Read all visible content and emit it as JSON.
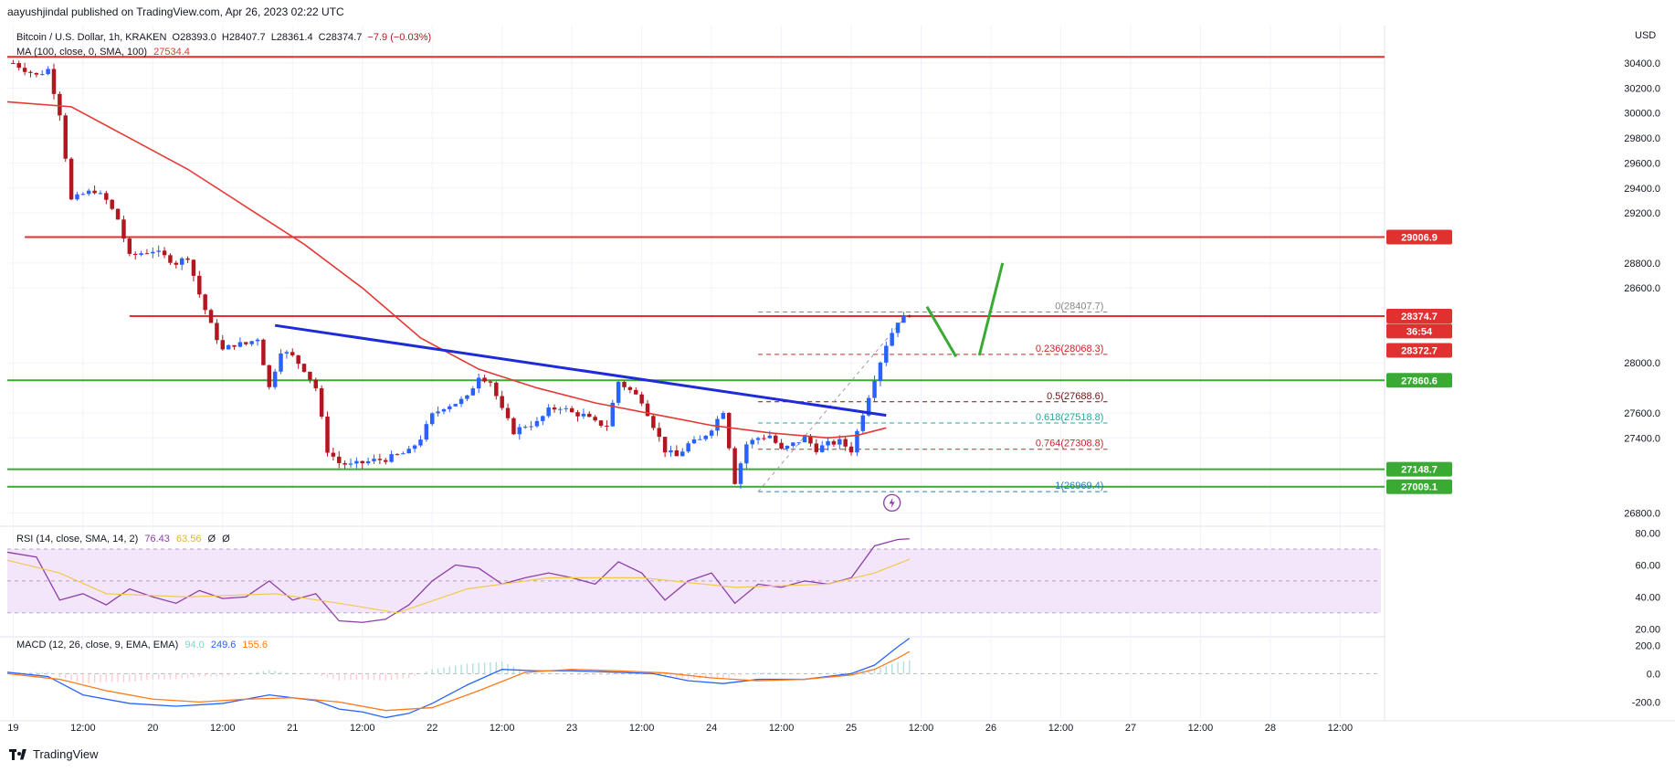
{
  "header": {
    "publisher": "aayushjindal published on TradingView.com, Apr 26, 2023 02:22 UTC"
  },
  "symbol": {
    "name": "Bitcoin / U.S. Dollar, 1h, KRAKEN",
    "open": "O28393.0",
    "high": "H28407.7",
    "low": "L28361.4",
    "close": "C28374.7",
    "change": "−7.9 (−0.03%)",
    "ma_label": "MA (100, close, 0, SMA, 100)",
    "ma_value": "27534.4"
  },
  "currency": "USD",
  "rsi_legend": {
    "label": "RSI (14, close, SMA, 14, 2)",
    "v1": "76.43",
    "v2": "63.56",
    "v3": "Ø",
    "v4": "Ø"
  },
  "macd_legend": {
    "label": "MACD (12, 26, close, 9, EMA, EMA)",
    "v1": "94.0",
    "v2": "249.6",
    "v3": "155.6"
  },
  "brand": "TradingView",
  "colors": {
    "up": "#2962ff",
    "down": "#b2161e",
    "ma": "#e53935",
    "res": "#e03030",
    "sup": "#3aaa35",
    "trend": "#1e2bd6",
    "rsi": "#8e3fa8",
    "macd": "#2962ff",
    "signal": "#ff7a1a"
  },
  "chart_data": [
    {
      "type": "candlestick",
      "title": "Bitcoin / U.S. Dollar, 1h, KRAKEN",
      "x_ticks": [
        "19",
        "12:00",
        "20",
        "12:00",
        "21",
        "12:00",
        "22",
        "12:00",
        "23",
        "12:00",
        "24",
        "12:00",
        "25",
        "12:00",
        "26",
        "12:00",
        "27",
        "12:00",
        "28",
        "12:00"
      ],
      "x_tick_hours": [
        0,
        12,
        24,
        36,
        48,
        60,
        72,
        84,
        96,
        108,
        120,
        132,
        144,
        156,
        168,
        180,
        192,
        204,
        216,
        228
      ],
      "y_ticks": [
        "30400.0",
        "30200.0",
        "30000.0",
        "29800.0",
        "29600.0",
        "29400.0",
        "29200.0",
        "28800.0",
        "28600.0",
        "28000.0",
        "27600.0",
        "27400.0",
        "26800.0"
      ],
      "y_tick_values": [
        30400,
        30200,
        30000,
        29800,
        29600,
        29400,
        29200,
        28800,
        28600,
        28000,
        27600,
        27400,
        26800
      ],
      "ylim": [
        26700,
        30700
      ],
      "xlim_hours": [
        -1,
        235
      ],
      "anchors_close": [
        [
          0,
          30400
        ],
        [
          2,
          30350
        ],
        [
          4,
          30300
        ],
        [
          6,
          30350
        ],
        [
          8,
          30000
        ],
        [
          10,
          29300
        ],
        [
          12,
          29350
        ],
        [
          14,
          29380
        ],
        [
          16,
          29300
        ],
        [
          18,
          29150
        ],
        [
          20,
          28850
        ],
        [
          22,
          28880
        ],
        [
          24,
          28900
        ],
        [
          26,
          28850
        ],
        [
          28,
          28800
        ],
        [
          30,
          28850
        ],
        [
          32,
          28550
        ],
        [
          34,
          28300
        ],
        [
          36,
          28100
        ],
        [
          38,
          28150
        ],
        [
          40,
          28150
        ],
        [
          42,
          28200
        ],
        [
          44,
          27800
        ],
        [
          46,
          28100
        ],
        [
          48,
          28050
        ],
        [
          50,
          27950
        ],
        [
          52,
          27800
        ],
        [
          54,
          27300
        ],
        [
          56,
          27200
        ],
        [
          58,
          27180
        ],
        [
          60,
          27200
        ],
        [
          62,
          27220
        ],
        [
          64,
          27230
        ],
        [
          66,
          27260
        ],
        [
          68,
          27290
        ],
        [
          70,
          27400
        ],
        [
          72,
          27580
        ],
        [
          74,
          27650
        ],
        [
          76,
          27680
        ],
        [
          78,
          27720
        ],
        [
          80,
          27900
        ],
        [
          82,
          27850
        ],
        [
          84,
          27620
        ],
        [
          86,
          27450
        ],
        [
          88,
          27500
        ],
        [
          90,
          27520
        ],
        [
          92,
          27620
        ],
        [
          94,
          27650
        ],
        [
          96,
          27600
        ],
        [
          98,
          27580
        ],
        [
          100,
          27520
        ],
        [
          102,
          27500
        ],
        [
          104,
          27850
        ],
        [
          106,
          27780
        ],
        [
          108,
          27700
        ],
        [
          110,
          27500
        ],
        [
          112,
          27300
        ],
        [
          114,
          27250
        ],
        [
          116,
          27350
        ],
        [
          118,
          27380
        ],
        [
          120,
          27480
        ],
        [
          122,
          27620
        ],
        [
          124,
          27050
        ],
        [
          126,
          27350
        ],
        [
          128,
          27400
        ],
        [
          130,
          27420
        ],
        [
          132,
          27300
        ],
        [
          134,
          27350
        ],
        [
          136,
          27400
        ],
        [
          138,
          27310
        ],
        [
          140,
          27350
        ],
        [
          142,
          27370
        ],
        [
          144,
          27300
        ],
        [
          146,
          27600
        ],
        [
          148,
          27880
        ],
        [
          150,
          28150
        ],
        [
          152,
          28340
        ],
        [
          154,
          28380
        ]
      ],
      "current_price": 28374.7,
      "series": [
        {
          "name": "MA (100, close, 0, SMA, 100)",
          "points": [
            [
              -1,
              30090
            ],
            [
              10,
              30050
            ],
            [
              20,
              29800
            ],
            [
              30,
              29550
            ],
            [
              40,
              29250
            ],
            [
              50,
              28950
            ],
            [
              60,
              28600
            ],
            [
              70,
              28200
            ],
            [
              80,
              27950
            ],
            [
              90,
              27800
            ],
            [
              100,
              27680
            ],
            [
              110,
              27590
            ],
            [
              120,
              27500
            ],
            [
              130,
              27440
            ],
            [
              140,
              27400
            ],
            [
              145,
              27420
            ],
            [
              150,
              27480
            ]
          ]
        }
      ],
      "horizontal_lines": [
        {
          "price": 30450,
          "from_h": -1,
          "role": "resistance"
        },
        {
          "price": 29006.9,
          "from_h": 2,
          "role": "resistance"
        },
        {
          "price": 28374.7,
          "from_h": 20,
          "role": "resistance"
        },
        {
          "price": 27860.6,
          "from_h": -1,
          "role": "support"
        },
        {
          "price": 27148.7,
          "from_h": -1,
          "role": "support"
        },
        {
          "price": 27009.1,
          "from_h": -1,
          "role": "support"
        }
      ],
      "trend_line": [
        [
          45,
          28300
        ],
        [
          150,
          27580
        ]
      ],
      "price_labels": [
        {
          "text": "29006.9",
          "price": 29006.9,
          "kind": "res"
        },
        {
          "text": "28374.7",
          "price": 28374.7,
          "kind": "res"
        },
        {
          "text": "36:54",
          "price": 28255,
          "kind": "res"
        },
        {
          "text": "28372.7",
          "price": 28100,
          "kind": "res"
        },
        {
          "text": "27860.6",
          "price": 27860.6,
          "kind": "sup"
        },
        {
          "text": "27148.7",
          "price": 27148.7,
          "kind": "sup"
        },
        {
          "text": "27009.1",
          "price": 27009.1,
          "kind": "sup"
        }
      ],
      "fibonacci": {
        "from_h": 128,
        "to_h": 188,
        "levels": [
          {
            "text": "0(28407.7)",
            "price": 28407.7,
            "color": "#888888"
          },
          {
            "text": "0.236(28068.3)",
            "price": 28068.3,
            "color": "#c62828"
          },
          {
            "text": "0.5(27688.6)",
            "price": 27688.6,
            "color": "#6d1414"
          },
          {
            "text": "0.618(27518.8)",
            "price": 27518.8,
            "color": "#26a69a"
          },
          {
            "text": "0.764(27308.8)",
            "price": 27308.8,
            "color": "#c62828"
          },
          {
            "text": "1(26969.4)",
            "price": 26969.4,
            "color": "#2a7fb0"
          }
        ]
      },
      "projection": [
        [
          157,
          28450
        ],
        [
          162,
          28050
        ],
        [
          166,
          28060
        ],
        [
          170,
          28800
        ]
      ]
    },
    {
      "type": "line",
      "title": "RSI (14, close, SMA, 14, 2)",
      "y_ticks": [
        "80.00",
        "60.00",
        "40.00",
        "20.00"
      ],
      "y_tick_values": [
        80,
        60,
        40,
        20
      ],
      "ylim": [
        15,
        82
      ],
      "bands": [
        30,
        50,
        70
      ],
      "series": [
        {
          "name": "RSI (14, close, SMA, 14, 2)",
          "points": [
            [
              -1,
              68
            ],
            [
              4,
              65
            ],
            [
              8,
              38
            ],
            [
              12,
              42
            ],
            [
              16,
              35
            ],
            [
              20,
              45
            ],
            [
              24,
              40
            ],
            [
              28,
              36
            ],
            [
              32,
              44
            ],
            [
              36,
              39
            ],
            [
              40,
              40
            ],
            [
              44,
              50
            ],
            [
              48,
              38
            ],
            [
              52,
              42
            ],
            [
              56,
              25
            ],
            [
              60,
              24
            ],
            [
              64,
              26
            ],
            [
              68,
              35
            ],
            [
              72,
              50
            ],
            [
              76,
              60
            ],
            [
              80,
              58
            ],
            [
              84,
              48
            ],
            [
              88,
              52
            ],
            [
              92,
              55
            ],
            [
              96,
              52
            ],
            [
              100,
              48
            ],
            [
              104,
              62
            ],
            [
              108,
              55
            ],
            [
              112,
              38
            ],
            [
              116,
              50
            ],
            [
              120,
              55
            ],
            [
              124,
              36
            ],
            [
              128,
              48
            ],
            [
              132,
              46
            ],
            [
              136,
              50
            ],
            [
              140,
              48
            ],
            [
              144,
              52
            ],
            [
              148,
              72
            ],
            [
              152,
              76
            ],
            [
              154,
              76.43
            ]
          ]
        },
        {
          "name": "",
          "points": [
            [
              -1,
              63
            ],
            [
              8,
              55
            ],
            [
              16,
              42
            ],
            [
              30,
              40
            ],
            [
              45,
              42
            ],
            [
              56,
              36
            ],
            [
              66,
              30
            ],
            [
              78,
              45
            ],
            [
              92,
              52
            ],
            [
              108,
              52
            ],
            [
              124,
              46
            ],
            [
              140,
              48
            ],
            [
              148,
              55
            ],
            [
              154,
              63.56
            ]
          ]
        }
      ]
    },
    {
      "type": "line",
      "title": "MACD (12, 26, close, 9, EMA, EMA)",
      "y_ticks": [
        "200.0",
        "0.0",
        "-200.0"
      ],
      "y_tick_values": [
        200,
        0,
        -200
      ],
      "ylim": [
        -320,
        260
      ],
      "series": [
        {
          "name": "MACD",
          "points": [
            [
              -1,
              10
            ],
            [
              6,
              -20
            ],
            [
              12,
              -150
            ],
            [
              20,
              -210
            ],
            [
              28,
              -230
            ],
            [
              36,
              -210
            ],
            [
              44,
              -150
            ],
            [
              52,
              -190
            ],
            [
              56,
              -250
            ],
            [
              60,
              -270
            ],
            [
              64,
              -310
            ],
            [
              68,
              -280
            ],
            [
              72,
              -210
            ],
            [
              78,
              -80
            ],
            [
              84,
              30
            ],
            [
              90,
              20
            ],
            [
              96,
              20
            ],
            [
              104,
              10
            ],
            [
              110,
              0
            ],
            [
              116,
              -50
            ],
            [
              122,
              -70
            ],
            [
              128,
              -40
            ],
            [
              136,
              -40
            ],
            [
              144,
              0
            ],
            [
              148,
              60
            ],
            [
              152,
              190
            ],
            [
              154,
              249.6
            ]
          ]
        },
        {
          "name": "Signal",
          "points": [
            [
              -1,
              0
            ],
            [
              8,
              -40
            ],
            [
              16,
              -120
            ],
            [
              24,
              -180
            ],
            [
              32,
              -200
            ],
            [
              40,
              -180
            ],
            [
              48,
              -170
            ],
            [
              56,
              -200
            ],
            [
              64,
              -260
            ],
            [
              72,
              -240
            ],
            [
              80,
              -120
            ],
            [
              88,
              10
            ],
            [
              96,
              30
            ],
            [
              104,
              20
            ],
            [
              112,
              5
            ],
            [
              120,
              -30
            ],
            [
              128,
              -50
            ],
            [
              136,
              -40
            ],
            [
              144,
              -10
            ],
            [
              148,
              30
            ],
            [
              152,
              110
            ],
            [
              154,
              155.6
            ]
          ]
        }
      ]
    }
  ]
}
